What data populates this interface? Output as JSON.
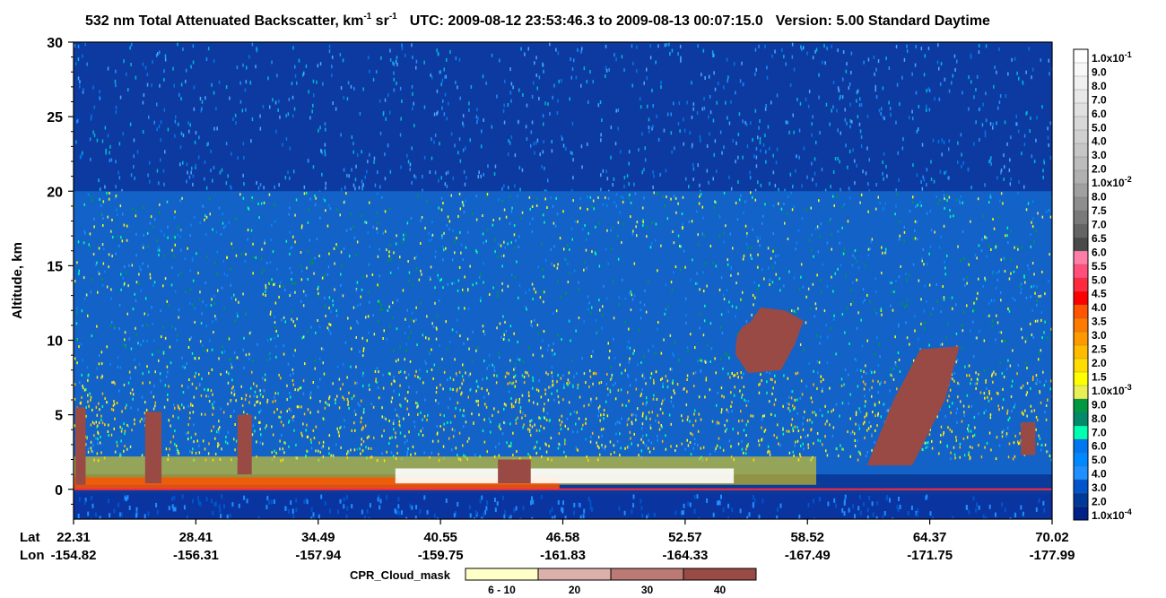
{
  "title": {
    "main": "532 nm Total Attenuated Backscatter, km",
    "unit_a_exp": "-1",
    "unit_b": " sr",
    "unit_b_exp": "-1",
    "utc": "UTC:  2009-08-12 23:53:46.3  to  2009-08-13 00:07:15.0",
    "version": "Version: 5.00  Standard  Daytime"
  },
  "chart_data": {
    "type": "heatmap",
    "ylabel": "Altitude, km",
    "ylim": [
      -2,
      30
    ],
    "y_ticks": [
      "0",
      "5",
      "10",
      "15",
      "20",
      "25",
      "30"
    ],
    "y_tick_values": [
      0,
      5,
      10,
      15,
      20,
      25,
      30
    ],
    "x_row_labels": [
      "Lat",
      "Lon"
    ],
    "lat_ticks": [
      "22.31",
      "28.41",
      "34.49",
      "40.55",
      "46.58",
      "52.57",
      "58.52",
      "64.37",
      "70.02"
    ],
    "lon_ticks": [
      "-154.82",
      "-156.31",
      "-157.94",
      "-159.75",
      "-161.83",
      "-164.33",
      "-167.49",
      "-171.75",
      "-177.99"
    ],
    "colorbar": {
      "labels": [
        "1.0x10-1",
        "9.0",
        "8.0",
        "7.0",
        "6.0",
        "5.0",
        "4.0",
        "3.0",
        "2.0",
        "1.0x10-2",
        "8.0",
        "7.5",
        "7.0",
        "6.5",
        "6.0",
        "5.5",
        "5.0",
        "4.5",
        "4.0",
        "3.5",
        "3.0",
        "2.5",
        "2.0",
        "1.5",
        "1.0x10-3",
        "9.0",
        "8.0",
        "7.0",
        "6.0",
        "5.0",
        "4.0",
        "3.0",
        "2.0",
        "1.0x10-4"
      ],
      "colors": [
        "#ffffff",
        "#f8f8f8",
        "#f0f0f0",
        "#e8e8e8",
        "#e0e0e0",
        "#d8d8d8",
        "#d0d0d0",
        "#c6c6c6",
        "#bcbcbc",
        "#b0b0b0",
        "#a0a0a0",
        "#8e8e8e",
        "#7a7a7a",
        "#646464",
        "#4a4a4a",
        "#ff7ea8",
        "#ff4f7a",
        "#ff2a3e",
        "#ff0000",
        "#ff5500",
        "#ff7a00",
        "#ff9900",
        "#ffbb00",
        "#ffdd00",
        "#ffff00",
        "#e8f055",
        "#009940",
        "#008a6a",
        "#00ffb0",
        "#0077ee",
        "#0088ff",
        "#1e90ff",
        "#0055cc",
        "#003a99",
        "#002288"
      ]
    },
    "features": [
      {
        "kind": "ground_return",
        "altitude_km": 0
      },
      {
        "kind": "low_cloud_layer",
        "lat_range": [
          22.31,
          58.52
        ],
        "altitude_km": [
          0,
          2
        ]
      },
      {
        "kind": "deep_cloud",
        "lat_range": [
          54.5,
          58.0
        ],
        "altitude_km": [
          7.5,
          12.5
        ]
      },
      {
        "kind": "deep_cloud",
        "lat_range": [
          61.0,
          65.5
        ],
        "altitude_km": [
          1.5,
          9.5
        ]
      }
    ]
  },
  "cpr_legend": {
    "label": "CPR_Cloud_mask",
    "items": [
      {
        "label": "6 - 10",
        "color": "#ffffc8"
      },
      {
        "label": "20",
        "color": "#ddb1ab"
      },
      {
        "label": "30",
        "color": "#bb7a75"
      },
      {
        "label": "40",
        "color": "#9a4a45"
      }
    ]
  }
}
